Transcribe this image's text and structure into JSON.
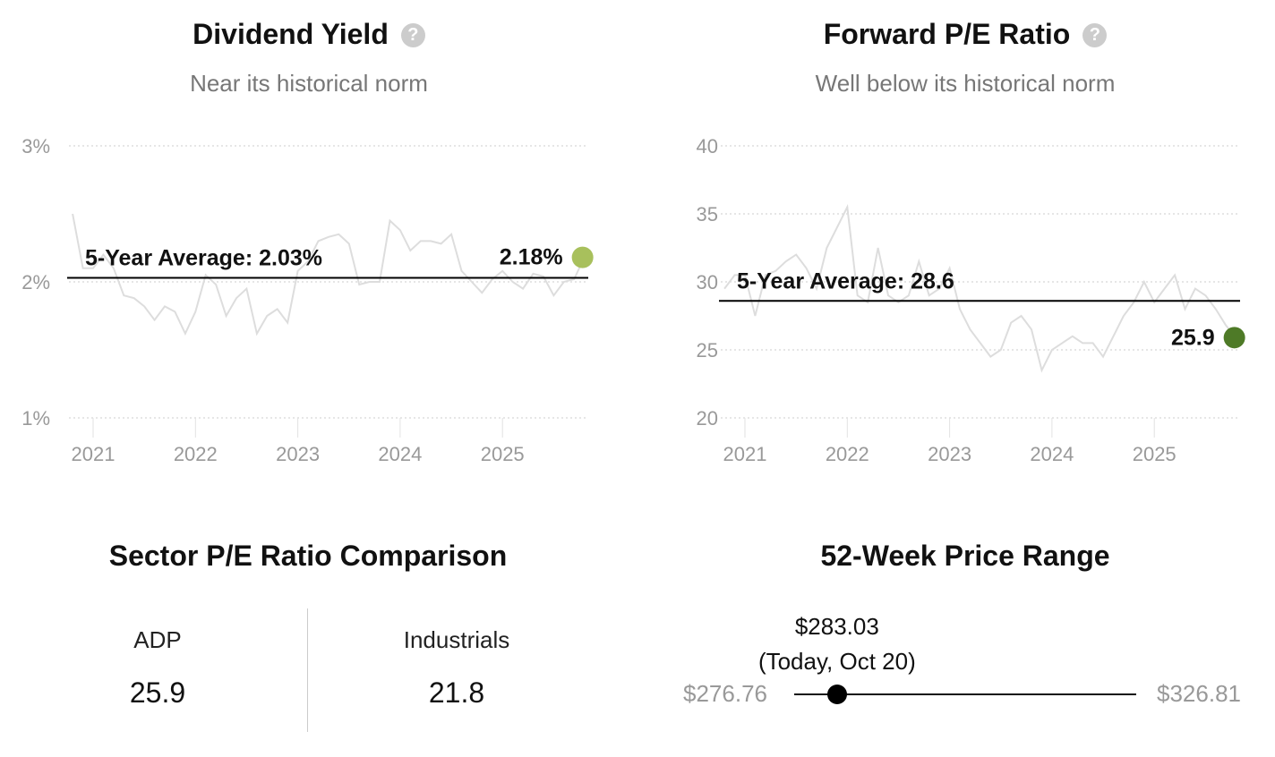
{
  "charts": {
    "dividend": {
      "title": "Dividend Yield",
      "subtitle": "Near its historical norm"
    },
    "pe": {
      "title": "Forward P/E Ratio",
      "subtitle": "Well below its historical norm"
    }
  },
  "chart_data": [
    {
      "type": "line",
      "title": "Dividend Yield",
      "ylim": [
        1,
        3
      ],
      "yticks": [
        "1%",
        "2%",
        "3%"
      ],
      "ytick_values": [
        1,
        2,
        3
      ],
      "xticks": [
        "2021",
        "2022",
        "2023",
        "2024",
        "2025"
      ],
      "grid": true,
      "average": {
        "label": "5-Year Average: 2.03%",
        "value": 2.03
      },
      "current": {
        "label": "2.18%",
        "value": 2.18,
        "color": "#a8c05c"
      },
      "line_color": "#dddddd",
      "x": [
        2020.8,
        2020.9,
        2021.0,
        2021.1,
        2021.2,
        2021.3,
        2021.4,
        2021.5,
        2021.6,
        2021.7,
        2021.8,
        2021.9,
        2022.0,
        2022.1,
        2022.2,
        2022.3,
        2022.4,
        2022.5,
        2022.6,
        2022.7,
        2022.8,
        2022.9,
        2023.0,
        2023.1,
        2023.2,
        2023.3,
        2023.4,
        2023.5,
        2023.6,
        2023.7,
        2023.8,
        2023.9,
        2024.0,
        2024.1,
        2024.2,
        2024.3,
        2024.4,
        2024.5,
        2024.6,
        2024.7,
        2024.8,
        2024.9,
        2025.0,
        2025.1,
        2025.2,
        2025.3,
        2025.4,
        2025.5,
        2025.6,
        2025.7,
        2025.8
      ],
      "y": [
        2.5,
        2.1,
        2.1,
        2.2,
        2.1,
        1.9,
        1.88,
        1.82,
        1.72,
        1.82,
        1.78,
        1.62,
        1.78,
        2.05,
        1.98,
        1.75,
        1.88,
        1.95,
        1.62,
        1.75,
        1.8,
        1.7,
        2.08,
        2.15,
        2.3,
        2.33,
        2.35,
        2.28,
        1.98,
        2.0,
        2.0,
        2.45,
        2.38,
        2.23,
        2.3,
        2.3,
        2.28,
        2.35,
        2.08,
        2.0,
        1.92,
        2.02,
        2.08,
        2.0,
        1.95,
        2.06,
        2.04,
        1.9,
        2.0,
        2.02,
        2.18
      ]
    },
    {
      "type": "line",
      "title": "Forward P/E Ratio",
      "ylim": [
        20,
        40
      ],
      "yticks": [
        "20",
        "25",
        "30",
        "35",
        "40"
      ],
      "ytick_values": [
        20,
        25,
        30,
        35,
        40
      ],
      "xticks": [
        "2021",
        "2022",
        "2023",
        "2024",
        "2025"
      ],
      "grid": true,
      "average": {
        "label": "5-Year Average: 28.6",
        "value": 28.6
      },
      "current": {
        "label": "25.9",
        "value": 25.9,
        "color": "#4e7a27"
      },
      "line_color": "#dddddd",
      "x": [
        2020.8,
        2020.9,
        2021.0,
        2021.1,
        2021.2,
        2021.3,
        2021.4,
        2021.5,
        2021.6,
        2021.7,
        2021.8,
        2021.9,
        2022.0,
        2022.1,
        2022.2,
        2022.3,
        2022.4,
        2022.5,
        2022.6,
        2022.7,
        2022.8,
        2022.9,
        2023.0,
        2023.1,
        2023.2,
        2023.3,
        2023.4,
        2023.5,
        2023.6,
        2023.7,
        2023.8,
        2023.9,
        2024.0,
        2024.1,
        2024.2,
        2024.3,
        2024.4,
        2024.5,
        2024.6,
        2024.7,
        2024.8,
        2024.9,
        2025.0,
        2025.1,
        2025.2,
        2025.3,
        2025.4,
        2025.5,
        2025.6,
        2025.7,
        2025.8
      ],
      "y": [
        29.5,
        30.5,
        30.5,
        27.5,
        30.5,
        30.8,
        31.5,
        32.0,
        31.0,
        29.5,
        32.5,
        34.0,
        35.5,
        29.0,
        28.5,
        32.5,
        29.0,
        28.5,
        29.0,
        31.5,
        29.0,
        29.5,
        31.0,
        28.0,
        26.5,
        25.5,
        24.5,
        25.0,
        27.0,
        27.5,
        26.5,
        23.5,
        25.0,
        25.5,
        26.0,
        25.5,
        25.5,
        24.5,
        26.0,
        27.5,
        28.5,
        30.0,
        28.5,
        29.5,
        30.5,
        28.0,
        29.5,
        29.0,
        28.0,
        26.8,
        25.9
      ]
    }
  ],
  "sector": {
    "title": "Sector P/E Ratio Comparison",
    "items": [
      {
        "label": "ADP",
        "value": "25.9"
      },
      {
        "label": "Industrials",
        "value": "21.8"
      }
    ]
  },
  "range": {
    "title": "52-Week Price Range",
    "low": "$276.76",
    "high": "$326.81",
    "current": "$283.03",
    "current_note": "(Today, Oct 20)",
    "low_value": 276.76,
    "high_value": 326.81,
    "current_value": 283.03
  }
}
